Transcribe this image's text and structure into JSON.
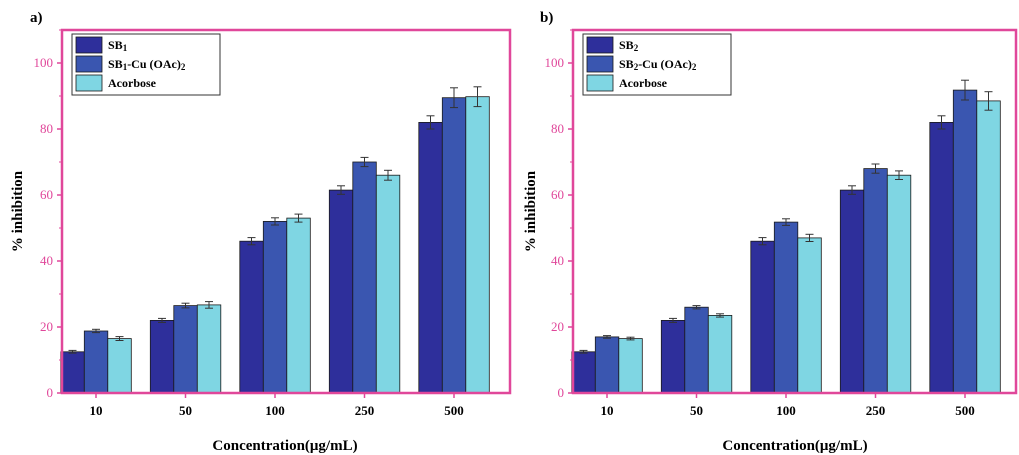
{
  "figure": {
    "colors": {
      "axis": "#e0479a",
      "tick_text": "#e0479a",
      "series": [
        "#2e2f9b",
        "#3a56b0",
        "#7fd6e3"
      ],
      "error_bar": "#333333"
    }
  },
  "chart_data": [
    {
      "type": "bar",
      "panel_label": "a)",
      "categories": [
        "10",
        "50",
        "100",
        "250",
        "500"
      ],
      "xlabel": "Concentration(μg/mL)",
      "ylabel": "% inhibition",
      "ylim": [
        0,
        110
      ],
      "yticks": [
        0,
        20,
        40,
        60,
        80,
        100
      ],
      "grid": false,
      "legend_placement": "top-left",
      "series": [
        {
          "name": "SB1",
          "values": [
            12.5,
            22,
            46,
            61.5,
            82
          ],
          "errors": [
            0.4,
            0.6,
            1.1,
            1.3,
            2.0
          ]
        },
        {
          "name": "SB1-Cu (OAc)2",
          "values": [
            18.8,
            26.5,
            52,
            70,
            89.5
          ],
          "errors": [
            0.5,
            0.7,
            1.1,
            1.4,
            3.0
          ]
        },
        {
          "name": "Acorbose",
          "values": [
            16.5,
            26.7,
            53,
            66,
            89.8
          ],
          "errors": [
            0.6,
            1.0,
            1.2,
            1.5,
            3.0
          ]
        }
      ]
    },
    {
      "type": "bar",
      "panel_label": "b)",
      "categories": [
        "10",
        "50",
        "100",
        "250",
        "500"
      ],
      "xlabel": "Concentration(μg/mL)",
      "ylabel": "% inhibition",
      "ylim": [
        0,
        110
      ],
      "yticks": [
        0,
        20,
        40,
        60,
        80,
        100
      ],
      "grid": false,
      "legend_placement": "top-left",
      "series": [
        {
          "name": "SB2",
          "values": [
            12.5,
            22,
            46,
            61.5,
            82
          ],
          "errors": [
            0.4,
            0.6,
            1.1,
            1.3,
            2.0
          ]
        },
        {
          "name": "SB2-Cu (OAc)2",
          "values": [
            17,
            26,
            51.8,
            68,
            91.8
          ],
          "errors": [
            0.4,
            0.5,
            1.0,
            1.4,
            3.0
          ]
        },
        {
          "name": "Acorbose",
          "values": [
            16.5,
            23.5,
            47,
            66,
            88.5
          ],
          "errors": [
            0.4,
            0.5,
            1.1,
            1.3,
            2.8
          ]
        }
      ]
    }
  ]
}
